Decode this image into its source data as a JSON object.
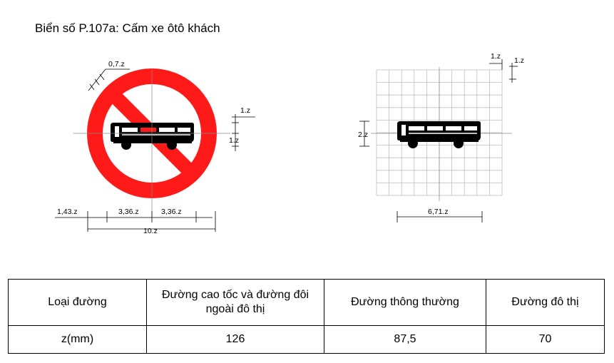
{
  "title": "Biển số P.107a: Cấm xe ôtô khách",
  "dims_left": {
    "border": "0,7.z",
    "dim_1z": "1.z",
    "dim_1z_b": "1.z",
    "left_gap": "1,43.z",
    "half_left": "3,36.z",
    "half_right": "3,36.z",
    "total": "10.z"
  },
  "dims_right": {
    "grid_x": "1.z",
    "grid_y": "1.z",
    "bus_h": "2.z",
    "bus_w": "6,71.z"
  },
  "colors": {
    "red": "#ff1a1a",
    "black": "#000000",
    "grid": "#bdbdbd"
  },
  "table": {
    "headers": [
      "Loại đường",
      "Đường cao tốc và đường đôi ngoài đô thị",
      "Đường thông thường",
      "Đường đô thị"
    ],
    "row_label": "z(mm)",
    "values": [
      "126",
      "87,5",
      "70"
    ]
  }
}
